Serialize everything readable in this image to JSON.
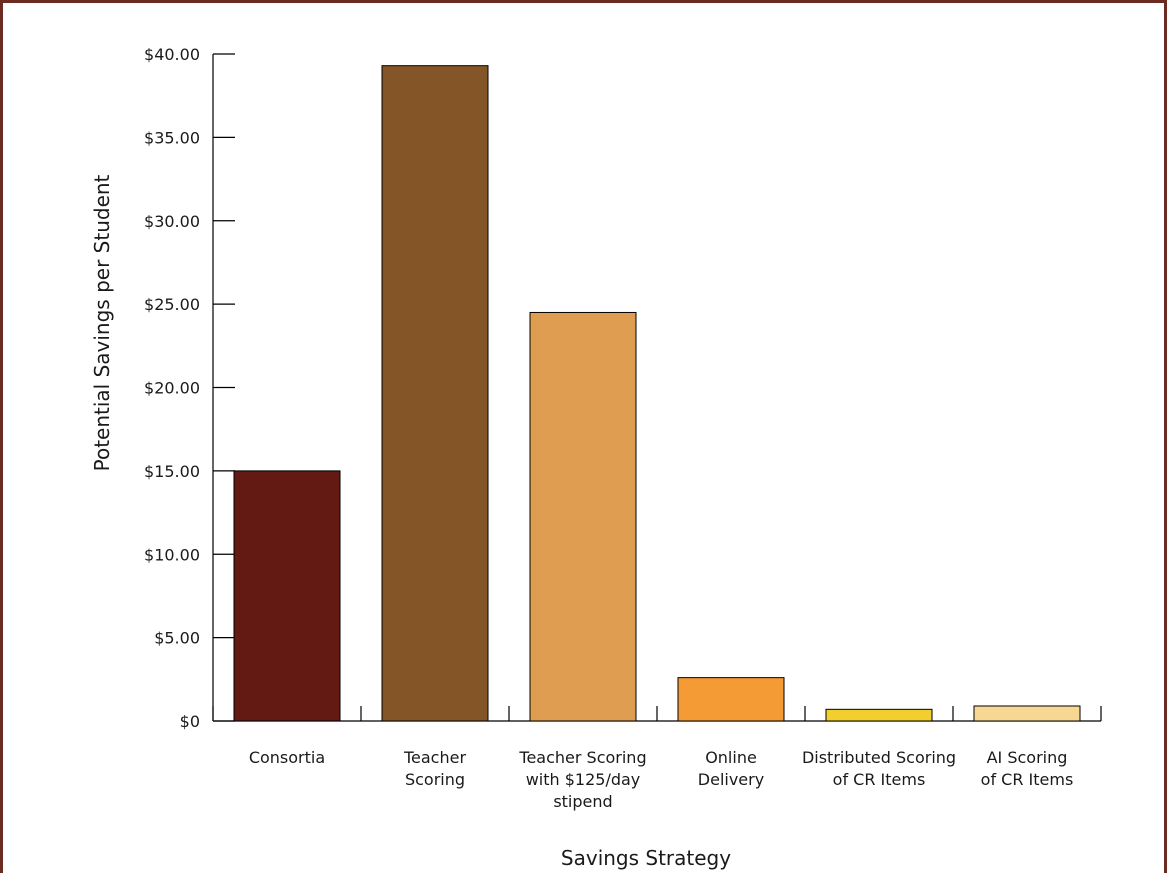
{
  "chart_data": {
    "type": "bar",
    "title": "",
    "xlabel": "Savings Strategy",
    "ylabel": "Potential Savings per Student",
    "ylim": [
      0,
      40
    ],
    "yticks": [
      0,
      5,
      10,
      15,
      20,
      25,
      30,
      35,
      40
    ],
    "ytick_labels": [
      "$0",
      "$5.00",
      "$10.00",
      "$15.00",
      "$20.00",
      "$25.00",
      "$30.00",
      "$35.00",
      "$40.00"
    ],
    "categories": [
      [
        "Consortia"
      ],
      [
        "Teacher",
        "Scoring"
      ],
      [
        "Teacher Scoring",
        "with $125/day",
        "stipend"
      ],
      [
        "Online",
        "Delivery"
      ],
      [
        "Distributed Scoring",
        "of CR Items"
      ],
      [
        "AI Scoring",
        "of CR Items"
      ]
    ],
    "values": [
      15.0,
      39.3,
      24.5,
      2.6,
      0.7,
      0.9
    ],
    "colors": [
      "#621a12",
      "#845627",
      "#df9d51",
      "#f59b36",
      "#f2cf2c",
      "#f8d793"
    ],
    "grid": false,
    "legend": "none"
  }
}
